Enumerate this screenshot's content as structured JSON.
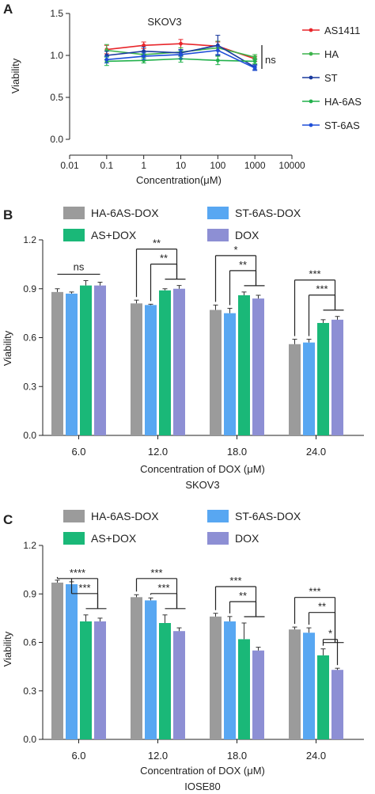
{
  "chart_data": [
    {
      "panel": "A",
      "type": "line",
      "title": "SKOV3",
      "xlabel": "Concentration(μM)",
      "ylabel": "Viability",
      "x_scale": "log",
      "xlim": [
        0.01,
        10000
      ],
      "ylim": [
        0,
        1.5
      ],
      "x_ticks": [
        "0.01",
        "0.1",
        "1",
        "10",
        "100",
        "1000",
        "10000"
      ],
      "y_ticks": [
        "0.0",
        "0.5",
        "1.0",
        "1.5"
      ],
      "x": [
        0.1,
        1,
        10,
        100,
        1000
      ],
      "series": [
        {
          "name": "AS1411",
          "color": "#e8262b",
          "values": [
            1.07,
            1.12,
            1.14,
            1.11,
            0.96
          ],
          "errors": [
            0.05,
            0.04,
            0.05,
            0.05,
            0.03
          ]
        },
        {
          "name": "HA",
          "color": "#3cb44b",
          "values": [
            1.06,
            1.01,
            1.04,
            1.09,
            0.98
          ],
          "errors": [
            0.07,
            0.04,
            0.05,
            0.08,
            0.03
          ]
        },
        {
          "name": "ST",
          "color": "#1a3a9e",
          "values": [
            1.0,
            1.05,
            1.03,
            1.12,
            0.86
          ],
          "errors": [
            0.05,
            0.05,
            0.04,
            0.12,
            0.03
          ]
        },
        {
          "name": "HA-6AS",
          "color": "#22b14c",
          "values": [
            0.93,
            0.94,
            0.96,
            0.94,
            0.93
          ],
          "errors": [
            0.05,
            0.03,
            0.04,
            0.05,
            0.03
          ]
        },
        {
          "name": "ST-6AS",
          "color": "#1e4fd8",
          "values": [
            0.95,
            0.99,
            1.01,
            1.06,
            0.85
          ],
          "errors": [
            0.04,
            0.04,
            0.05,
            0.05,
            0.03
          ]
        }
      ],
      "annotation": "ns",
      "legend_position": "right"
    },
    {
      "panel": "B",
      "type": "bar",
      "xlabel": "Concentration of DOX (μM)",
      "cell_line": "SKOV3",
      "ylabel": "Viability",
      "ylim": [
        0,
        1.2
      ],
      "y_ticks": [
        "0.0",
        "0.3",
        "0.6",
        "0.9",
        "1.2"
      ],
      "categories": [
        "6.0",
        "12.0",
        "18.0",
        "24.0"
      ],
      "series": [
        {
          "name": "HA-6AS-DOX",
          "color": "#9b9b9b",
          "values": [
            0.88,
            0.81,
            0.77,
            0.56
          ],
          "errors": [
            0.02,
            0.02,
            0.03,
            0.03
          ]
        },
        {
          "name": "ST-6AS-DOX",
          "color": "#58a7f2",
          "values": [
            0.87,
            0.8,
            0.75,
            0.57
          ],
          "errors": [
            0.01,
            0.005,
            0.03,
            0.02
          ]
        },
        {
          "name": "AS+DOX",
          "color": "#1ab878",
          "values": [
            0.92,
            0.89,
            0.86,
            0.69
          ],
          "errors": [
            0.03,
            0.01,
            0.02,
            0.02
          ]
        },
        {
          "name": "DOX",
          "color": "#8d8fd4",
          "values": [
            0.92,
            0.9,
            0.84,
            0.71
          ],
          "errors": [
            0.02,
            0.02,
            0.02,
            0.02
          ]
        }
      ],
      "significance": [
        {
          "group": 0,
          "labels": [
            "ns"
          ]
        },
        {
          "group": 1,
          "labels": [
            "**",
            "**"
          ]
        },
        {
          "group": 2,
          "labels": [
            "*",
            "**"
          ]
        },
        {
          "group": 3,
          "labels": [
            "***",
            "***"
          ]
        }
      ],
      "legend_position": "top"
    },
    {
      "panel": "C",
      "type": "bar",
      "xlabel": "Concentration of DOX (μM)",
      "cell_line": "IOSE80",
      "ylabel": "Viability",
      "ylim": [
        0,
        1.2
      ],
      "y_ticks": [
        "0.0",
        "0.3",
        "0.6",
        "0.9",
        "1.2"
      ],
      "categories": [
        "6.0",
        "12.0",
        "18.0",
        "24.0"
      ],
      "series": [
        {
          "name": "HA-6AS-DOX",
          "color": "#9b9b9b",
          "values": [
            0.97,
            0.88,
            0.76,
            0.68
          ],
          "errors": [
            0.015,
            0.015,
            0.02,
            0.015
          ]
        },
        {
          "name": "ST-6AS-DOX",
          "color": "#58a7f2",
          "values": [
            0.96,
            0.86,
            0.73,
            0.66
          ],
          "errors": [
            0.015,
            0.015,
            0.03,
            0.03
          ]
        },
        {
          "name": "AS+DOX",
          "color": "#1ab878",
          "values": [
            0.73,
            0.72,
            0.62,
            0.52
          ],
          "errors": [
            0.04,
            0.05,
            0.1,
            0.04
          ]
        },
        {
          "name": "DOX",
          "color": "#8d8fd4",
          "values": [
            0.73,
            0.67,
            0.55,
            0.43
          ],
          "errors": [
            0.02,
            0.02,
            0.02,
            0.01
          ]
        }
      ],
      "significance": [
        {
          "group": 0,
          "labels": [
            "****",
            "***"
          ]
        },
        {
          "group": 1,
          "labels": [
            "***",
            "***"
          ]
        },
        {
          "group": 2,
          "labels": [
            "***",
            "**"
          ]
        },
        {
          "group": 3,
          "labels": [
            "***",
            "**",
            "*"
          ]
        }
      ],
      "legend_position": "top"
    }
  ]
}
